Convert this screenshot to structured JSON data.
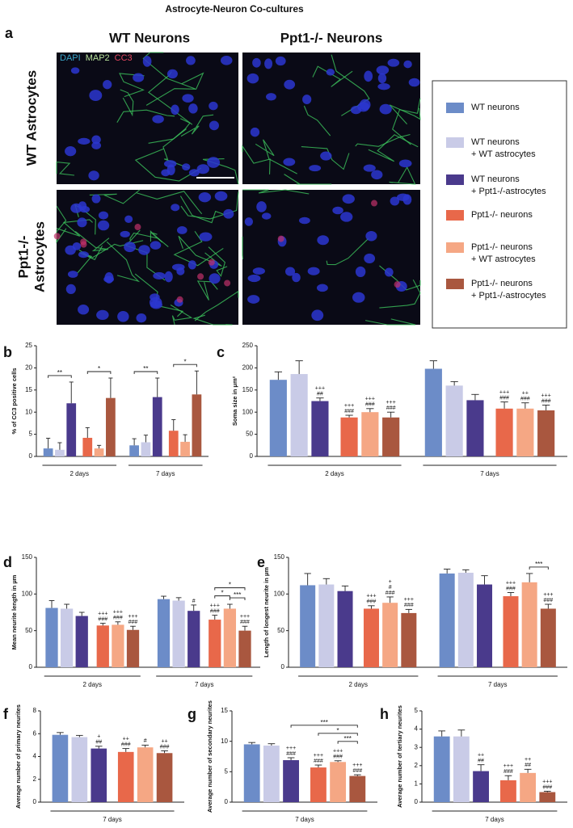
{
  "title": "Astrocyte-Neuron Co-cultures",
  "panel_a": {
    "label": "a",
    "columns": [
      "WT Neurons",
      "Ppt1-/- Neurons"
    ],
    "rows": [
      [
        "WT Astrocytes"
      ],
      [
        "Ppt1-/-",
        "Astrocytes"
      ]
    ],
    "channels": [
      {
        "name": "DAPI",
        "color": "#39a6c9"
      },
      {
        "name": "MAP2",
        "color": "#b7e09a"
      },
      {
        "name": "CC3",
        "color": "#e2465e"
      }
    ]
  },
  "legend": [
    {
      "lines": [
        "WT neurons"
      ],
      "color": "#6c8cc8"
    },
    {
      "lines": [
        "WT neurons",
        "+ WT astrocytes"
      ],
      "color": "#c9cbe7"
    },
    {
      "lines": [
        "WT neurons",
        "+ Ppt1-/-astrocytes"
      ],
      "color": "#4a3a8c"
    },
    {
      "lines": [
        "Ppt1-/- neurons"
      ],
      "color": "#e8684a"
    },
    {
      "lines": [
        "Ppt1-/- neurons",
        "+ WT astrocytes"
      ],
      "color": "#f5a784"
    },
    {
      "lines": [
        "Ppt1-/- neurons",
        "+ Ppt1-/-astrocytes"
      ],
      "color": "#a9573f"
    }
  ],
  "chart_data": [
    {
      "type": "bar",
      "panel": "b",
      "ylabel": "% of CC3 positive cells",
      "categories": [
        "2 days",
        "7 days"
      ],
      "ylim": [
        0,
        25
      ],
      "yticks": [
        0,
        5,
        10,
        15,
        20,
        25
      ],
      "series": [
        {
          "color": "#6c8cc8",
          "values": [
            1.8,
            2.5
          ],
          "errors": [
            2.3,
            1.5
          ],
          "sig": [
            null,
            null
          ]
        },
        {
          "color": "#c9cbe7",
          "values": [
            1.5,
            3.2
          ],
          "errors": [
            1.6,
            1.6
          ],
          "sig": [
            null,
            null
          ]
        },
        {
          "color": "#4a3a8c",
          "values": [
            12,
            13.4
          ],
          "errors": [
            4.8,
            4.3
          ],
          "sig": [
            null,
            null
          ]
        },
        {
          "color": "#e8684a",
          "values": [
            4.2,
            5.8
          ],
          "errors": [
            2.3,
            2.5
          ],
          "sig": [
            null,
            null
          ]
        },
        {
          "color": "#f5a784",
          "values": [
            1.8,
            3.3
          ],
          "errors": [
            0.7,
            1.6
          ],
          "sig": [
            null,
            null
          ]
        },
        {
          "color": "#a9573f",
          "values": [
            13.2,
            14
          ],
          "errors": [
            4.5,
            5.3
          ],
          "sig": [
            null,
            null
          ]
        }
      ],
      "brackets": [
        {
          "category": 0,
          "from": 0,
          "to": 2,
          "label": "**"
        },
        {
          "category": 0,
          "from": 3,
          "to": 5,
          "label": "*"
        },
        {
          "category": 1,
          "from": 0,
          "to": 2,
          "label": "**"
        },
        {
          "category": 1,
          "from": 3,
          "to": 5,
          "label": "*"
        }
      ]
    },
    {
      "type": "bar",
      "panel": "c",
      "ylabel": "Soma size in μm²",
      "categories": [
        "2 days",
        "7 days"
      ],
      "ylim": [
        0,
        250
      ],
      "yticks": [
        0,
        50,
        100,
        150,
        200,
        250
      ],
      "series": [
        {
          "color": "#6c8cc8",
          "values": [
            173,
            198
          ],
          "errors": [
            18,
            18
          ],
          "sig": [
            null,
            null
          ]
        },
        {
          "color": "#c9cbe7",
          "values": [
            186,
            160
          ],
          "errors": [
            30,
            9
          ],
          "sig": [
            null,
            null
          ]
        },
        {
          "color": "#4a3a8c",
          "values": [
            125,
            127
          ],
          "errors": [
            7,
            13
          ],
          "sig": [
            [
              "+++",
              "##"
            ],
            null
          ]
        },
        {
          "color": "#e8684a",
          "values": [
            88,
            108
          ],
          "errors": [
            5,
            15
          ],
          "sig": [
            [
              "+++",
              "###"
            ],
            [
              "+++",
              "###"
            ]
          ]
        },
        {
          "color": "#f5a784",
          "values": [
            100,
            108
          ],
          "errors": [
            8,
            13
          ],
          "sig": [
            [
              "+++",
              "###"
            ],
            [
              "++",
              "###"
            ]
          ]
        },
        {
          "color": "#a9573f",
          "values": [
            88,
            104
          ],
          "errors": [
            12,
            12
          ],
          "sig": [
            [
              "+++",
              "###"
            ],
            [
              "+++",
              "###"
            ]
          ]
        }
      ],
      "brackets": []
    },
    {
      "type": "bar",
      "panel": "d",
      "ylabel": "Mean neurite length in µm",
      "categories": [
        "2 days",
        "7 days"
      ],
      "ylim": [
        0,
        150
      ],
      "yticks": [
        0,
        50,
        100,
        150
      ],
      "series": [
        {
          "color": "#6c8cc8",
          "values": [
            81,
            93
          ],
          "errors": [
            10,
            4
          ],
          "sig": [
            null,
            null
          ]
        },
        {
          "color": "#c9cbe7",
          "values": [
            80,
            91
          ],
          "errors": [
            6,
            4
          ],
          "sig": [
            null,
            null
          ]
        },
        {
          "color": "#4a3a8c",
          "values": [
            70,
            77
          ],
          "errors": [
            5,
            8
          ],
          "sig": [
            null,
            [
              "#"
            ]
          ]
        },
        {
          "color": "#e8684a",
          "values": [
            57,
            65
          ],
          "errors": [
            3,
            6
          ],
          "sig": [
            [
              "+++",
              "###"
            ],
            [
              "+++",
              "###"
            ]
          ]
        },
        {
          "color": "#f5a784",
          "values": [
            58,
            80
          ],
          "errors": [
            4,
            6
          ],
          "sig": [
            [
              "+++",
              "###"
            ],
            null
          ]
        },
        {
          "color": "#a9573f",
          "values": [
            51,
            50
          ],
          "errors": [
            5,
            6
          ],
          "sig": [
            [
              "+++",
              "###"
            ],
            [
              "+++",
              "###"
            ]
          ]
        }
      ],
      "brackets": [
        {
          "category": 1,
          "from": 3,
          "to": 4,
          "label": "*"
        },
        {
          "category": 1,
          "from": 4,
          "to": 5,
          "label": "***"
        },
        {
          "category": 1,
          "from": 3,
          "to": 5,
          "label": "*"
        }
      ]
    },
    {
      "type": "bar",
      "panel": "e",
      "ylabel": "Length of longest neurite in µm",
      "categories": [
        "2 days",
        "7 days"
      ],
      "ylim": [
        0,
        150
      ],
      "yticks": [
        0,
        50,
        100,
        150
      ],
      "series": [
        {
          "color": "#6c8cc8",
          "values": [
            112,
            128
          ],
          "errors": [
            16,
            6
          ],
          "sig": [
            null,
            null
          ]
        },
        {
          "color": "#c9cbe7",
          "values": [
            113,
            129
          ],
          "errors": [
            8,
            4
          ],
          "sig": [
            null,
            null
          ]
        },
        {
          "color": "#4a3a8c",
          "values": [
            104,
            113
          ],
          "errors": [
            7,
            12
          ],
          "sig": [
            null,
            null
          ]
        },
        {
          "color": "#e8684a",
          "values": [
            80,
            97
          ],
          "errors": [
            4,
            5
          ],
          "sig": [
            [
              "+++",
              "###"
            ],
            [
              "+++",
              "###"
            ]
          ]
        },
        {
          "color": "#f5a784",
          "values": [
            88,
            116
          ],
          "errors": [
            8,
            12
          ],
          "sig": [
            [
              "+",
              "#",
              "###"
            ],
            null
          ]
        },
        {
          "color": "#a9573f",
          "values": [
            74,
            80
          ],
          "errors": [
            5,
            6
          ],
          "sig": [
            [
              "+++",
              "###"
            ],
            [
              "+++",
              "###"
            ]
          ]
        }
      ],
      "brackets": [
        {
          "category": 1,
          "from": 4,
          "to": 5,
          "label": "***"
        }
      ]
    },
    {
      "type": "bar",
      "panel": "f",
      "ylabel": "Average number of primary neurites",
      "categories": [
        "7 days"
      ],
      "ylim": [
        0,
        8
      ],
      "yticks": [
        0,
        2,
        4,
        6,
        8
      ],
      "series": [
        {
          "color": "#6c8cc8",
          "values": [
            5.9
          ],
          "errors": [
            0.2
          ],
          "sig": [
            null
          ]
        },
        {
          "color": "#c9cbe7",
          "values": [
            5.7
          ],
          "errors": [
            0.15
          ],
          "sig": [
            null
          ]
        },
        {
          "color": "#4a3a8c",
          "values": [
            4.7
          ],
          "errors": [
            0.2
          ],
          "sig": [
            [
              "+",
              "##"
            ]
          ]
        },
        {
          "color": "#e8684a",
          "values": [
            4.4
          ],
          "errors": [
            0.3
          ],
          "sig": [
            [
              "++",
              "###"
            ]
          ]
        },
        {
          "color": "#f5a784",
          "values": [
            4.8
          ],
          "errors": [
            0.2
          ],
          "sig": [
            [
              "#"
            ]
          ]
        },
        {
          "color": "#a9573f",
          "values": [
            4.3
          ],
          "errors": [
            0.2
          ],
          "sig": [
            [
              "++",
              "###"
            ]
          ]
        }
      ],
      "brackets": []
    },
    {
      "type": "bar",
      "panel": "g",
      "ylabel": "Average number of secondary neurites",
      "categories": [
        "7 days"
      ],
      "ylim": [
        0,
        15
      ],
      "yticks": [
        0,
        5,
        10,
        15
      ],
      "series": [
        {
          "color": "#6c8cc8",
          "values": [
            9.5
          ],
          "errors": [
            0.3
          ],
          "sig": [
            null
          ]
        },
        {
          "color": "#c9cbe7",
          "values": [
            9.3
          ],
          "errors": [
            0.3
          ],
          "sig": [
            null
          ]
        },
        {
          "color": "#4a3a8c",
          "values": [
            6.9
          ],
          "errors": [
            0.4
          ],
          "sig": [
            [
              "+++",
              "###"
            ]
          ]
        },
        {
          "color": "#e8684a",
          "values": [
            5.7
          ],
          "errors": [
            0.4
          ],
          "sig": [
            [
              "+++",
              "###"
            ]
          ]
        },
        {
          "color": "#f5a784",
          "values": [
            6.6
          ],
          "errors": [
            0.2
          ],
          "sig": [
            [
              "+++",
              "###"
            ]
          ]
        },
        {
          "color": "#a9573f",
          "values": [
            4.3
          ],
          "errors": [
            0.2
          ],
          "sig": [
            [
              "+++",
              "###"
            ]
          ]
        }
      ],
      "brackets": [
        {
          "category": 0,
          "from": 4,
          "to": 5,
          "label": "***"
        },
        {
          "category": 0,
          "from": 3,
          "to": 5,
          "label": "*"
        },
        {
          "category": 0,
          "from": 2,
          "to": 5,
          "label": "***"
        }
      ]
    },
    {
      "type": "bar",
      "panel": "h",
      "ylabel": "Average number of tertiary neurites",
      "categories": [
        "7 days"
      ],
      "ylim": [
        0,
        5
      ],
      "yticks": [
        0,
        1,
        2,
        3,
        4,
        5
      ],
      "series": [
        {
          "color": "#6c8cc8",
          "values": [
            3.6
          ],
          "errors": [
            0.3
          ],
          "sig": [
            null
          ]
        },
        {
          "color": "#c9cbe7",
          "values": [
            3.6
          ],
          "errors": [
            0.35
          ],
          "sig": [
            null
          ]
        },
        {
          "color": "#4a3a8c",
          "values": [
            1.7
          ],
          "errors": [
            0.35
          ],
          "sig": [
            [
              "++",
              "##"
            ]
          ]
        },
        {
          "color": "#e8684a",
          "values": [
            1.2
          ],
          "errors": [
            0.25
          ],
          "sig": [
            [
              "+++",
              "###"
            ]
          ]
        },
        {
          "color": "#f5a784",
          "values": [
            1.6
          ],
          "errors": [
            0.2
          ],
          "sig": [
            [
              "++",
              "##"
            ]
          ]
        },
        {
          "color": "#a9573f",
          "values": [
            0.55
          ],
          "errors": [
            0.05
          ],
          "sig": [
            [
              "+++",
              "###"
            ]
          ]
        }
      ],
      "brackets": []
    }
  ]
}
